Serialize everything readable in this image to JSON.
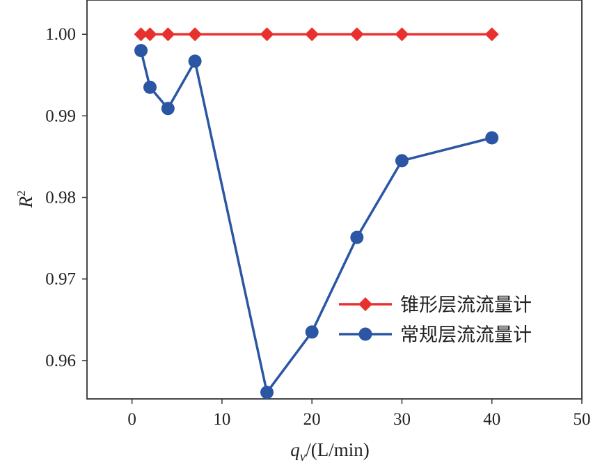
{
  "chart_data": {
    "type": "line",
    "title": "",
    "xlabel": {
      "base": "q",
      "sub": "v",
      "rest": "/(L/min)"
    },
    "ylabel": {
      "base": "R",
      "sup": "2"
    },
    "xlim": [
      -5,
      50
    ],
    "ylim": [
      0.9553,
      1.0042
    ],
    "xticks": [
      0,
      10,
      20,
      30,
      40,
      50
    ],
    "xtick_labels": [
      "0",
      "10",
      "20",
      "30",
      "40",
      "50"
    ],
    "yticks": [
      0.96,
      0.97,
      0.98,
      0.99,
      1.0
    ],
    "ytick_labels": [
      "0.96",
      "0.97",
      "0.98",
      "0.99",
      "1.00"
    ],
    "grid": false,
    "legend_position": "lower-right",
    "series": [
      {
        "name": "锥形层流流量计",
        "color": "#e8312f",
        "marker": "diamond",
        "x": [
          1,
          2,
          4,
          7,
          15,
          20,
          25,
          30,
          40
        ],
        "y": [
          1.0,
          1.0,
          1.0,
          1.0,
          1.0,
          1.0,
          1.0,
          1.0,
          1.0
        ]
      },
      {
        "name": "常规层流流量计",
        "color": "#2b56a4",
        "marker": "circle",
        "x": [
          1,
          2,
          4,
          7,
          15,
          20,
          25,
          30,
          40
        ],
        "y": [
          0.998,
          0.9935,
          0.9909,
          0.9967,
          0.9561,
          0.9635,
          0.9751,
          0.9845,
          0.9873
        ]
      }
    ]
  }
}
